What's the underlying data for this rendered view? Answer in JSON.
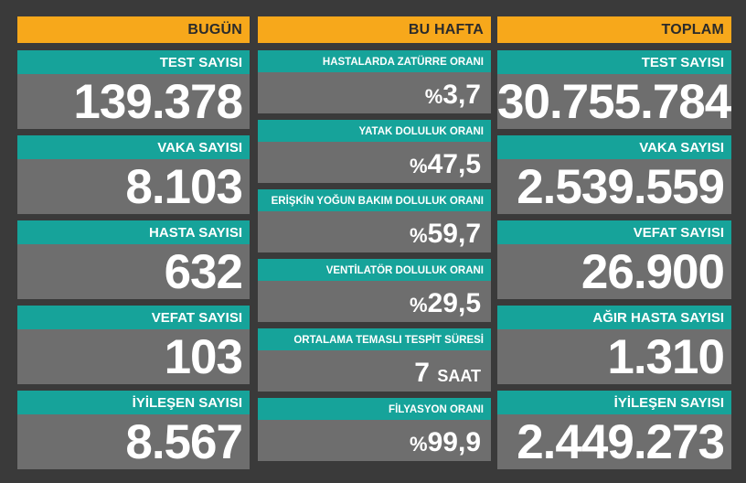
{
  "columns": {
    "today": {
      "title": "BUGÜN",
      "cards": [
        {
          "label": "TEST SAYISI",
          "value": "139.378"
        },
        {
          "label": "VAKA SAYISI",
          "value": "8.103"
        },
        {
          "label": "HASTA SAYISI",
          "value": "632"
        },
        {
          "label": "VEFAT SAYISI",
          "value": "103"
        },
        {
          "label": "İYİLEŞEN SAYISI",
          "value": "8.567"
        }
      ]
    },
    "week": {
      "title": "BU HAFTA",
      "cards": [
        {
          "label": "HASTALARDA ZATÜRRE ORANI",
          "prefix": "%",
          "value": "3,7",
          "suffix": ""
        },
        {
          "label": "YATAK DOLULUK ORANI",
          "prefix": "%",
          "value": "47,5",
          "suffix": ""
        },
        {
          "label": "ERİŞKİN YOĞUN BAKIM DOLULUK ORANI",
          "prefix": "%",
          "value": "59,7",
          "suffix": ""
        },
        {
          "label": "VENTİLATÖR DOLULUK ORANI",
          "prefix": "%",
          "value": "29,5",
          "suffix": ""
        },
        {
          "label": "ORTALAMA TEMASLI TESPİT SÜRESİ",
          "prefix": "",
          "value": "7",
          "suffix": "SAAT"
        },
        {
          "label": "FİLYASYON ORANI",
          "prefix": "%",
          "value": "99,9",
          "suffix": ""
        }
      ]
    },
    "total": {
      "title": "TOPLAM",
      "cards": [
        {
          "label": "TEST SAYISI",
          "value": "30.755.784"
        },
        {
          "label": "VAKA SAYISI",
          "value": "2.539.559"
        },
        {
          "label": "VEFAT SAYISI",
          "value": "26.900"
        },
        {
          "label": "AĞIR HASTA SAYISI",
          "value": "1.310"
        },
        {
          "label": "İYİLEŞEN SAYISI",
          "value": "2.449.273"
        }
      ]
    }
  },
  "colors": {
    "background": "#3a3a3a",
    "header": "#f7a81b",
    "label": "#16a39a",
    "value_box": "#6e6e6e"
  }
}
